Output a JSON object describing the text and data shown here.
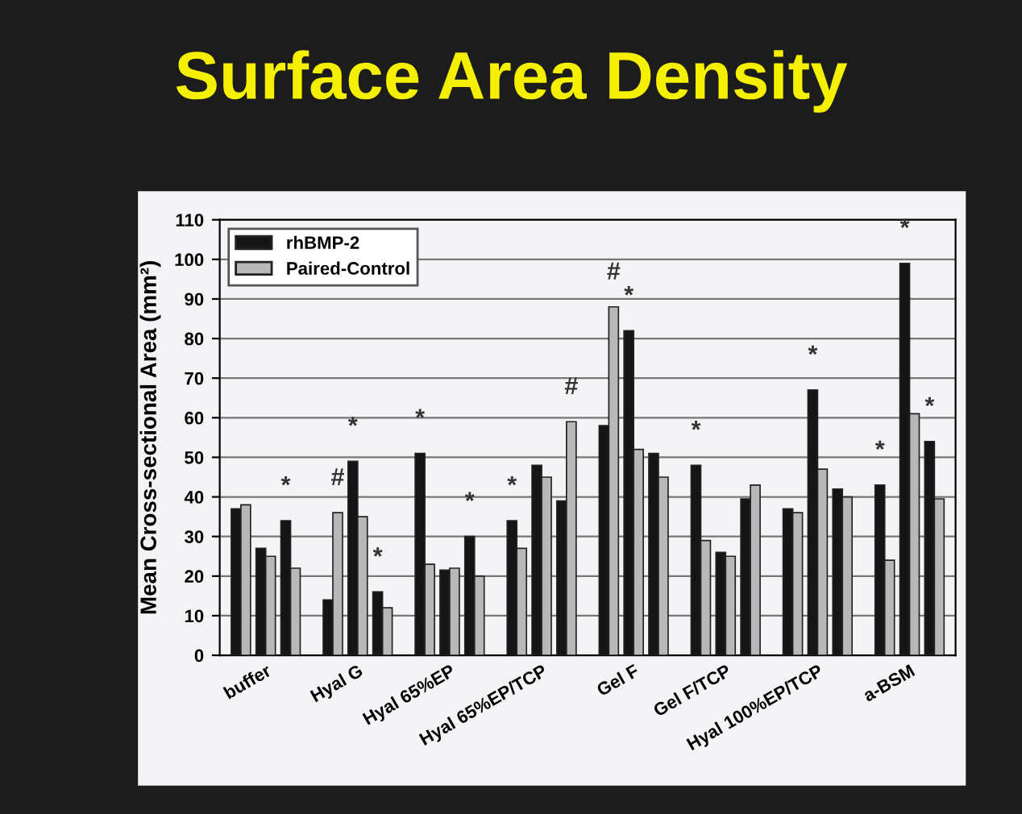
{
  "chart_data": {
    "type": "bar",
    "title": "Surface Area Density",
    "ylabel": "Mean Cross-sectional Area (mm²)",
    "categories": [
      "buffer",
      "Hyal G",
      "Hyal 65%EP",
      "Hyal 65%EP/TCP",
      "Gel F",
      "Gel F/TCP",
      "Hyal 100%EP/TCP",
      "a-BSM"
    ],
    "series": [
      {
        "name": "rhBMP-2",
        "color": "#151515",
        "values": [
          37,
          14,
          51,
          34,
          58,
          48,
          37,
          43
        ],
        "value_labels": [
          null,
          null,
          "*",
          "*",
          null,
          "*",
          null,
          "*"
        ]
      },
      {
        "name": "Paired-Control",
        "color": "#b8b8b8",
        "values": [
          38,
          36,
          23,
          27,
          88,
          29,
          36,
          24
        ],
        "value_labels": [
          null,
          "#",
          null,
          null,
          "#",
          null,
          null,
          null
        ]
      },
      {
        "color": "#151515",
        "values": [
          27,
          49,
          21.5,
          48,
          82,
          26,
          67,
          99
        ],
        "value_labels": [
          null,
          "*",
          null,
          null,
          "*",
          null,
          "*",
          "*"
        ]
      },
      {
        "color": "#b8b8b8",
        "values": [
          25,
          35,
          22,
          45,
          52,
          25,
          47,
          61
        ],
        "value_labels": [
          null,
          null,
          null,
          null,
          null,
          null,
          null,
          null
        ]
      },
      {
        "color": "#151515",
        "values": [
          34,
          16,
          30,
          39,
          51,
          39.5,
          42,
          54
        ],
        "value_labels": [
          "*",
          "*",
          "*",
          null,
          null,
          null,
          null,
          "*"
        ]
      },
      {
        "color": "#b8b8b8",
        "values": [
          22,
          12,
          20,
          59,
          45,
          43,
          40,
          39.5
        ],
        "value_labels": [
          null,
          null,
          null,
          "#",
          null,
          null,
          null,
          null
        ]
      }
    ],
    "ylim": [
      0,
      110
    ],
    "yticks": [
      0,
      10,
      20,
      30,
      40,
      50,
      60,
      70,
      80,
      90,
      100,
      110
    ],
    "grid": "y",
    "legend": "top left"
  }
}
